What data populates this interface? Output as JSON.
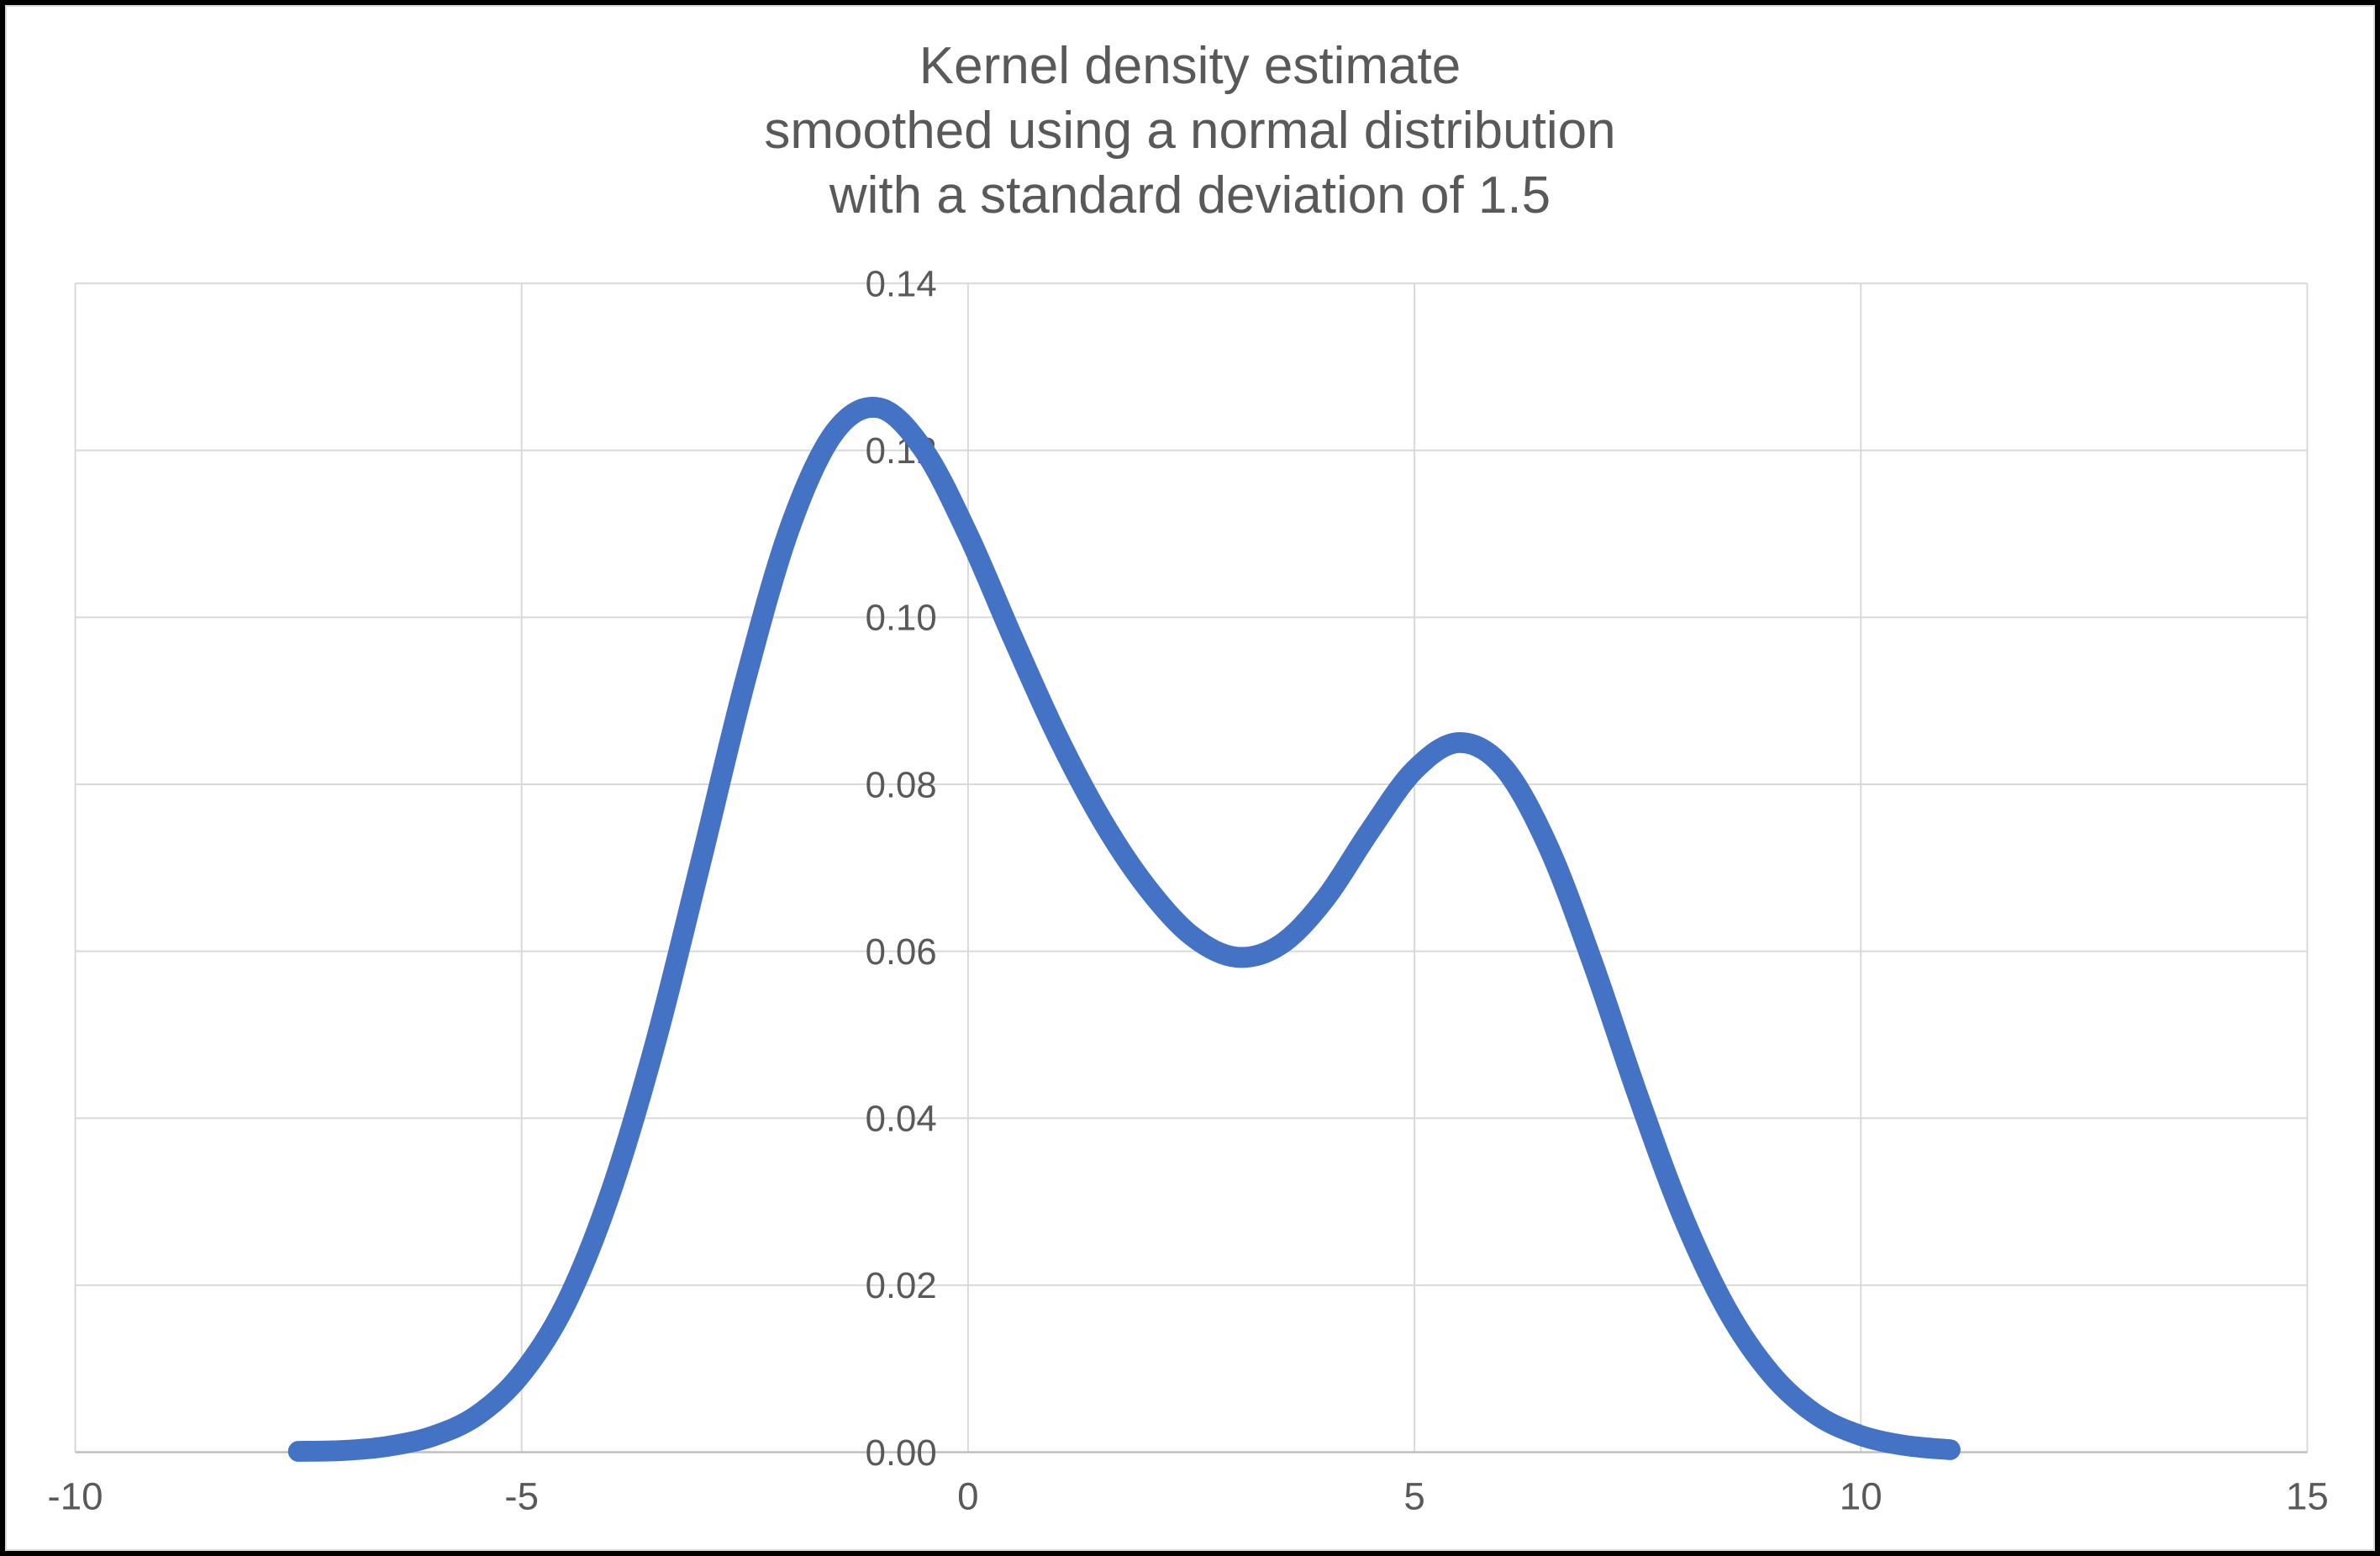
{
  "title": "Kernel density estimate\nsmoothed using a normal distribution\nwith a standard deviation of 1.5",
  "colors": {
    "background": "#ffffff",
    "frame": "#000000",
    "chart_border": "#d9d9d9",
    "gridline": "#d9d9d9",
    "axis_line": "#bfbfbf",
    "tick_label": "#595959",
    "title": "#595959",
    "line": "#4472c4"
  },
  "chart_data": {
    "type": "line",
    "title": "Kernel density estimate smoothed using a normal distribution with a standard deviation of 1.5",
    "xlabel": "",
    "ylabel": "",
    "xlim": [
      -10,
      15
    ],
    "ylim": [
      0,
      0.14
    ],
    "grid": true,
    "legend_position": "none",
    "x_ticks": [
      {
        "value": -10,
        "label": "-10"
      },
      {
        "value": -5,
        "label": "-5"
      },
      {
        "value": 0,
        "label": "0"
      },
      {
        "value": 5,
        "label": "5"
      },
      {
        "value": 10,
        "label": "10"
      },
      {
        "value": 15,
        "label": "15"
      }
    ],
    "y_ticks": [
      {
        "value": 0.0,
        "label": "0.00"
      },
      {
        "value": 0.02,
        "label": "0.02"
      },
      {
        "value": 0.04,
        "label": "0.04"
      },
      {
        "value": 0.06,
        "label": "0.06"
      },
      {
        "value": 0.08,
        "label": "0.08"
      },
      {
        "value": 0.1,
        "label": "0.10"
      },
      {
        "value": 0.12,
        "label": "0.12"
      },
      {
        "value": 0.14,
        "label": "0.14"
      }
    ],
    "series": [
      {
        "name": "Kernel density estimate",
        "color": "#4472c4",
        "stroke_width": 25,
        "smooth": true,
        "x": [
          -7.5,
          -7.0,
          -6.5,
          -6.0,
          -5.5,
          -5.0,
          -4.5,
          -4.0,
          -3.5,
          -3.0,
          -2.5,
          -2.0,
          -1.5,
          -1.0,
          -0.5,
          0.0,
          0.5,
          1.0,
          1.5,
          2.0,
          2.5,
          3.0,
          3.5,
          4.0,
          4.5,
          5.0,
          5.5,
          6.0,
          6.5,
          7.0,
          7.5,
          8.0,
          8.5,
          9.0,
          9.5,
          10.0,
          10.5,
          11.0
        ],
        "y": [
          0.0001,
          0.0002,
          0.0007,
          0.0019,
          0.0044,
          0.0094,
          0.0179,
          0.0312,
          0.0491,
          0.0704,
          0.0922,
          0.1106,
          0.1221,
          0.1251,
          0.1201,
          0.1099,
          0.0976,
          0.0858,
          0.0757,
          0.0677,
          0.0619,
          0.0593,
          0.0608,
          0.0663,
          0.0744,
          0.0817,
          0.085,
          0.082,
          0.0725,
          0.0585,
          0.0428,
          0.0284,
          0.0171,
          0.0093,
          0.0045,
          0.002,
          0.0008,
          0.0003
        ]
      }
    ]
  }
}
